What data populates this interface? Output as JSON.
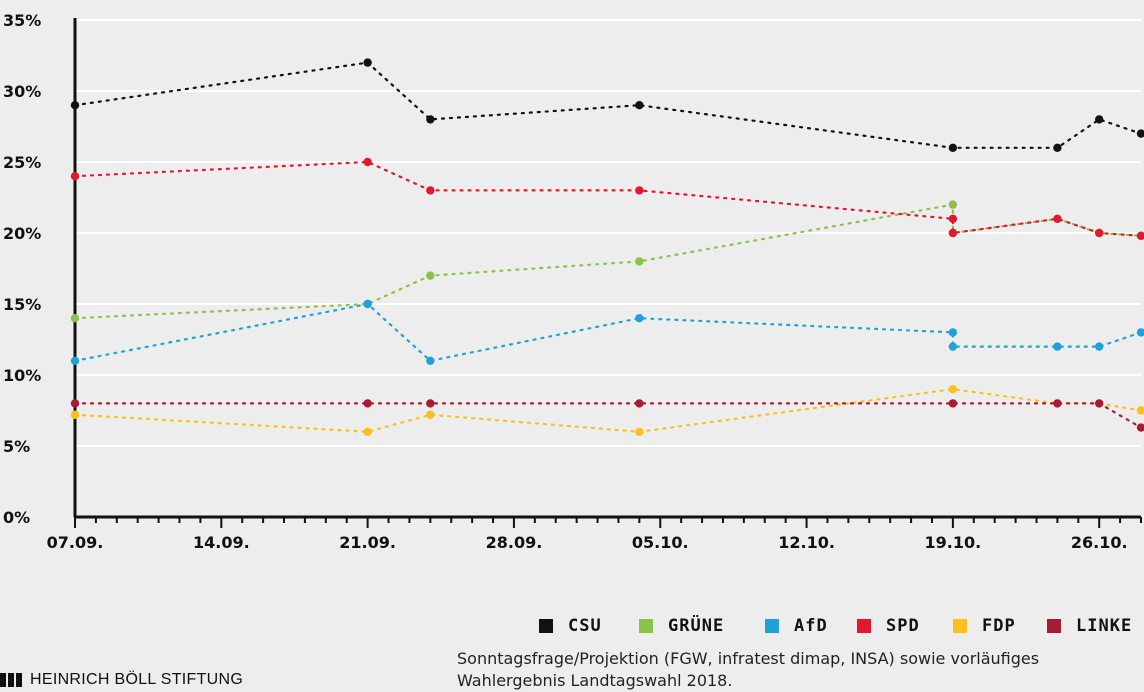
{
  "chart_data": {
    "type": "line",
    "ylim": [
      0,
      35
    ],
    "y_ticks": [
      "0%",
      "5%",
      "10%",
      "15%",
      "20%",
      "25%",
      "30%",
      "35%"
    ],
    "x_ticks": [
      "07.09.",
      "14.09.",
      "21.09.",
      "28.09.",
      "05.10.",
      "12.10.",
      "19.10.",
      "26.10."
    ],
    "x_range": [
      "2018-09-07",
      "2018-10-28"
    ],
    "grid": true,
    "legend_position": "bottom-right",
    "series": [
      {
        "name": "CSU",
        "color": "#111111",
        "x": [
          "2018-09-07",
          "2018-09-21",
          "2018-09-24",
          "2018-10-04",
          "2018-10-19",
          "2018-10-24",
          "2018-10-26",
          "2018-10-28"
        ],
        "y": [
          29,
          32,
          28,
          29,
          26,
          26,
          28,
          27
        ]
      },
      {
        "name": "GRÜNE",
        "color": "#8bc34a",
        "x": [
          "2018-09-07",
          "2018-09-21",
          "2018-09-24",
          "2018-10-04",
          "2018-10-19",
          "2018-10-19",
          "2018-10-24",
          "2018-10-26",
          "2018-10-28"
        ],
        "y": [
          14,
          15,
          17,
          18,
          22,
          20,
          21,
          20,
          19.8
        ]
      },
      {
        "name": "AfD",
        "color": "#1fa2d8",
        "x": [
          "2018-09-07",
          "2018-09-21",
          "2018-09-24",
          "2018-10-04",
          "2018-10-19",
          "2018-10-19",
          "2018-10-24",
          "2018-10-26",
          "2018-10-28"
        ],
        "y": [
          11,
          15,
          11,
          14,
          13,
          12,
          12,
          12,
          13
        ]
      },
      {
        "name": "SPD",
        "color": "#e3172d",
        "x": [
          "2018-09-07",
          "2018-09-21",
          "2018-09-24",
          "2018-10-04",
          "2018-10-19",
          "2018-10-19",
          "2018-10-24",
          "2018-10-26",
          "2018-10-28"
        ],
        "y": [
          24,
          25,
          23,
          23,
          21,
          20,
          21,
          20,
          19.8
        ]
      },
      {
        "name": "FDP",
        "color": "#f9c11a",
        "x": [
          "2018-09-07",
          "2018-09-21",
          "2018-09-24",
          "2018-10-04",
          "2018-10-19",
          "2018-10-24",
          "2018-10-26",
          "2018-10-28"
        ],
        "y": [
          7.2,
          6,
          7.2,
          6,
          9,
          8,
          8,
          7.5
        ]
      },
      {
        "name": "LINKE",
        "color": "#a91b34",
        "x": [
          "2018-09-07",
          "2018-09-21",
          "2018-09-24",
          "2018-10-04",
          "2018-10-19",
          "2018-10-24",
          "2018-10-26",
          "2018-10-28"
        ],
        "y": [
          8,
          8,
          8,
          8,
          8,
          8,
          8,
          6.3
        ]
      }
    ]
  },
  "legend": {
    "items": [
      {
        "label": "CSU",
        "color": "#111111"
      },
      {
        "label": "GRÜNE",
        "color": "#8bc34a"
      },
      {
        "label": "AfD",
        "color": "#1fa2d8"
      },
      {
        "label": "SPD",
        "color": "#e3172d"
      },
      {
        "label": "FDP",
        "color": "#f9c11a"
      },
      {
        "label": "LINKE",
        "color": "#a91b34"
      }
    ]
  },
  "footer": {
    "brand": "HEINRICH BÖLL STIFTUNG",
    "source_line1": "Sonntagsfrage/Projektion (FGW, infratest dimap, INSA) sowie vorläufiges",
    "source_line2": "Wahlergebnis Landtagswahl 2018."
  }
}
